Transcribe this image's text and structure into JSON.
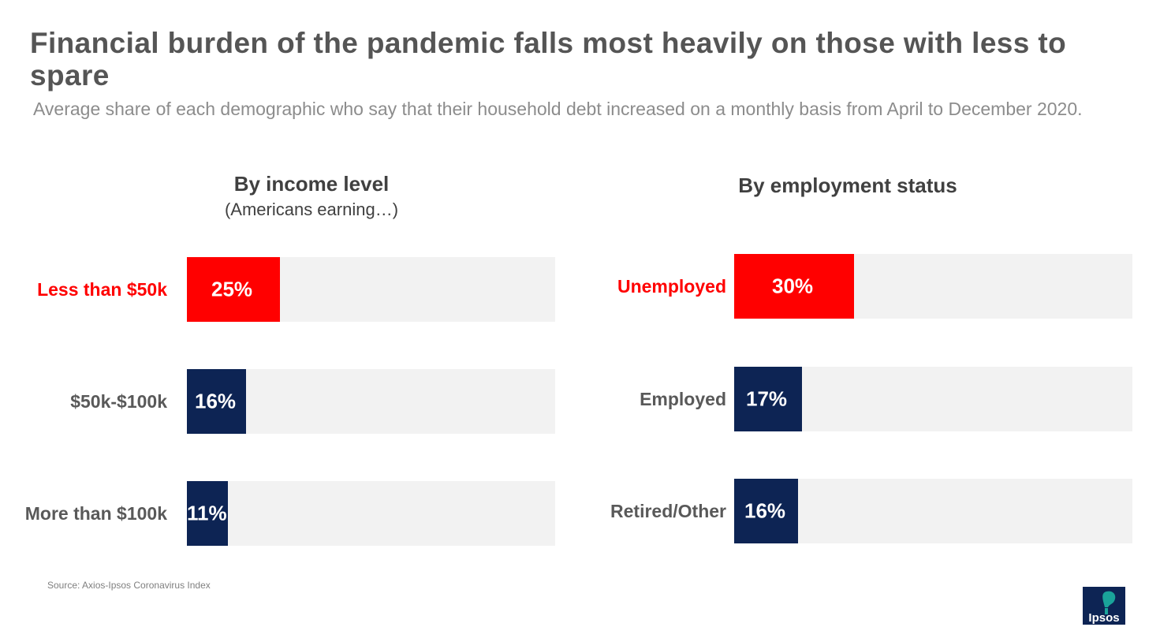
{
  "title": "Financial burden of the pandemic falls most heavily on those with less to spare",
  "subtitle": "Average share of each demographic who say that their household debt increased on a monthly basis from April to December 2020.",
  "source": "Source: Axios-Ipsos Coronavirus Index",
  "logo_text": "Ipsos",
  "colors": {
    "highlight": "#ff0000",
    "base": "#0d2454",
    "track": "#f2f2f2"
  },
  "chart_data": [
    {
      "type": "bar",
      "orientation": "horizontal",
      "title": "By income level",
      "subtitle": "(Americans earning…)",
      "categories": [
        "Less than $50k",
        "$50k-$100k",
        "More than $100k"
      ],
      "values": [
        25,
        16,
        11
      ],
      "value_labels": [
        "25%",
        "16%",
        "11%"
      ],
      "highlight": [
        true,
        false,
        false
      ],
      "xlim": [
        0,
        100
      ],
      "unit": "%"
    },
    {
      "type": "bar",
      "orientation": "horizontal",
      "title": "By employment status",
      "subtitle": "",
      "categories": [
        "Unemployed",
        "Employed",
        "Retired/Other"
      ],
      "values": [
        30,
        17,
        16
      ],
      "value_labels": [
        "30%",
        "17%",
        "16%"
      ],
      "highlight": [
        true,
        false,
        false
      ],
      "xlim": [
        0,
        100
      ],
      "unit": "%"
    }
  ]
}
